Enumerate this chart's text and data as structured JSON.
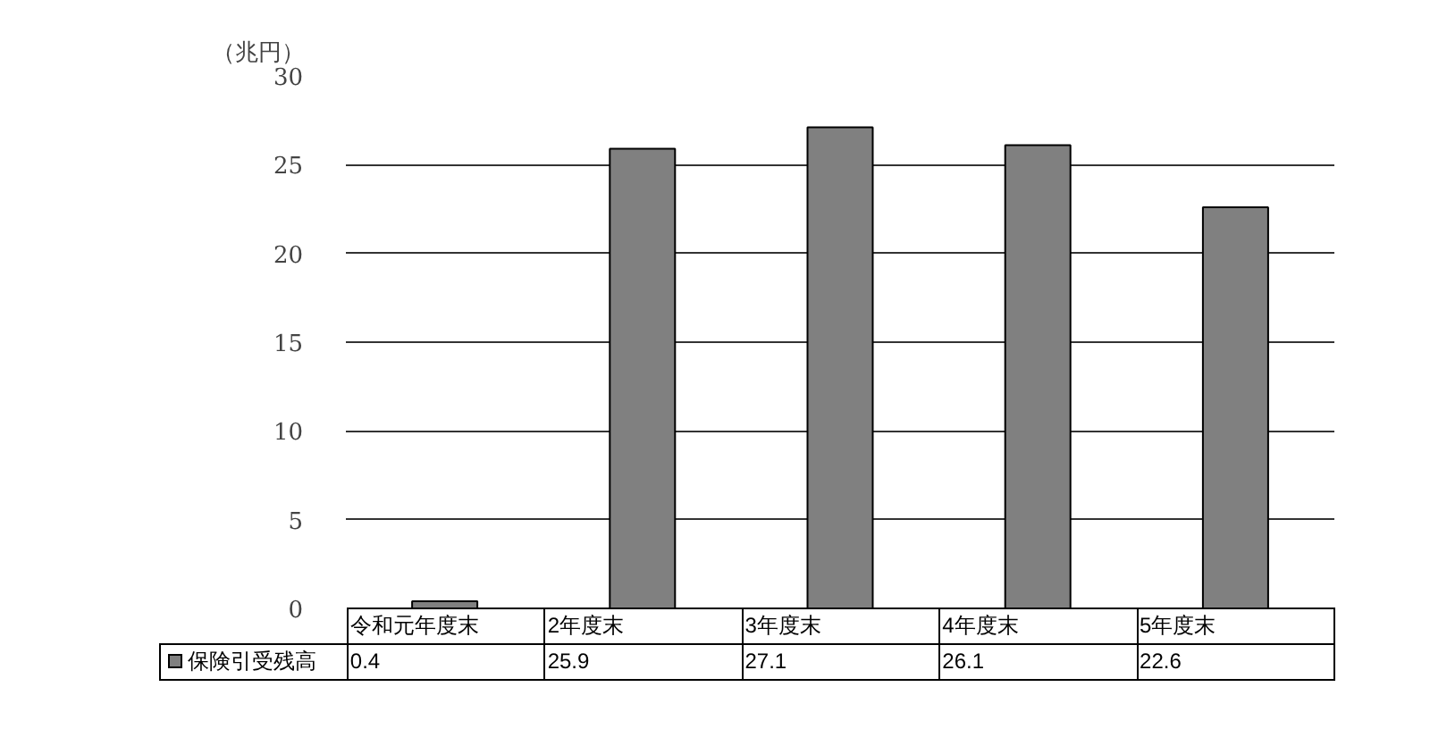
{
  "chart_data": {
    "type": "bar",
    "ylabel": "（兆円）",
    "categories": [
      "令和元年度末",
      "2年度末",
      "3年度末",
      "4年度末",
      "5年度末"
    ],
    "series": [
      {
        "name": "保険引受残高",
        "color": "#808080",
        "values": [
          0.4,
          25.9,
          27.1,
          26.1,
          22.6
        ]
      }
    ],
    "ylim": [
      0,
      30
    ],
    "yticks": [
      0,
      5,
      10,
      15,
      20,
      25,
      30
    ],
    "grid": "y",
    "legend": "bottom left",
    "data_labels": true
  }
}
